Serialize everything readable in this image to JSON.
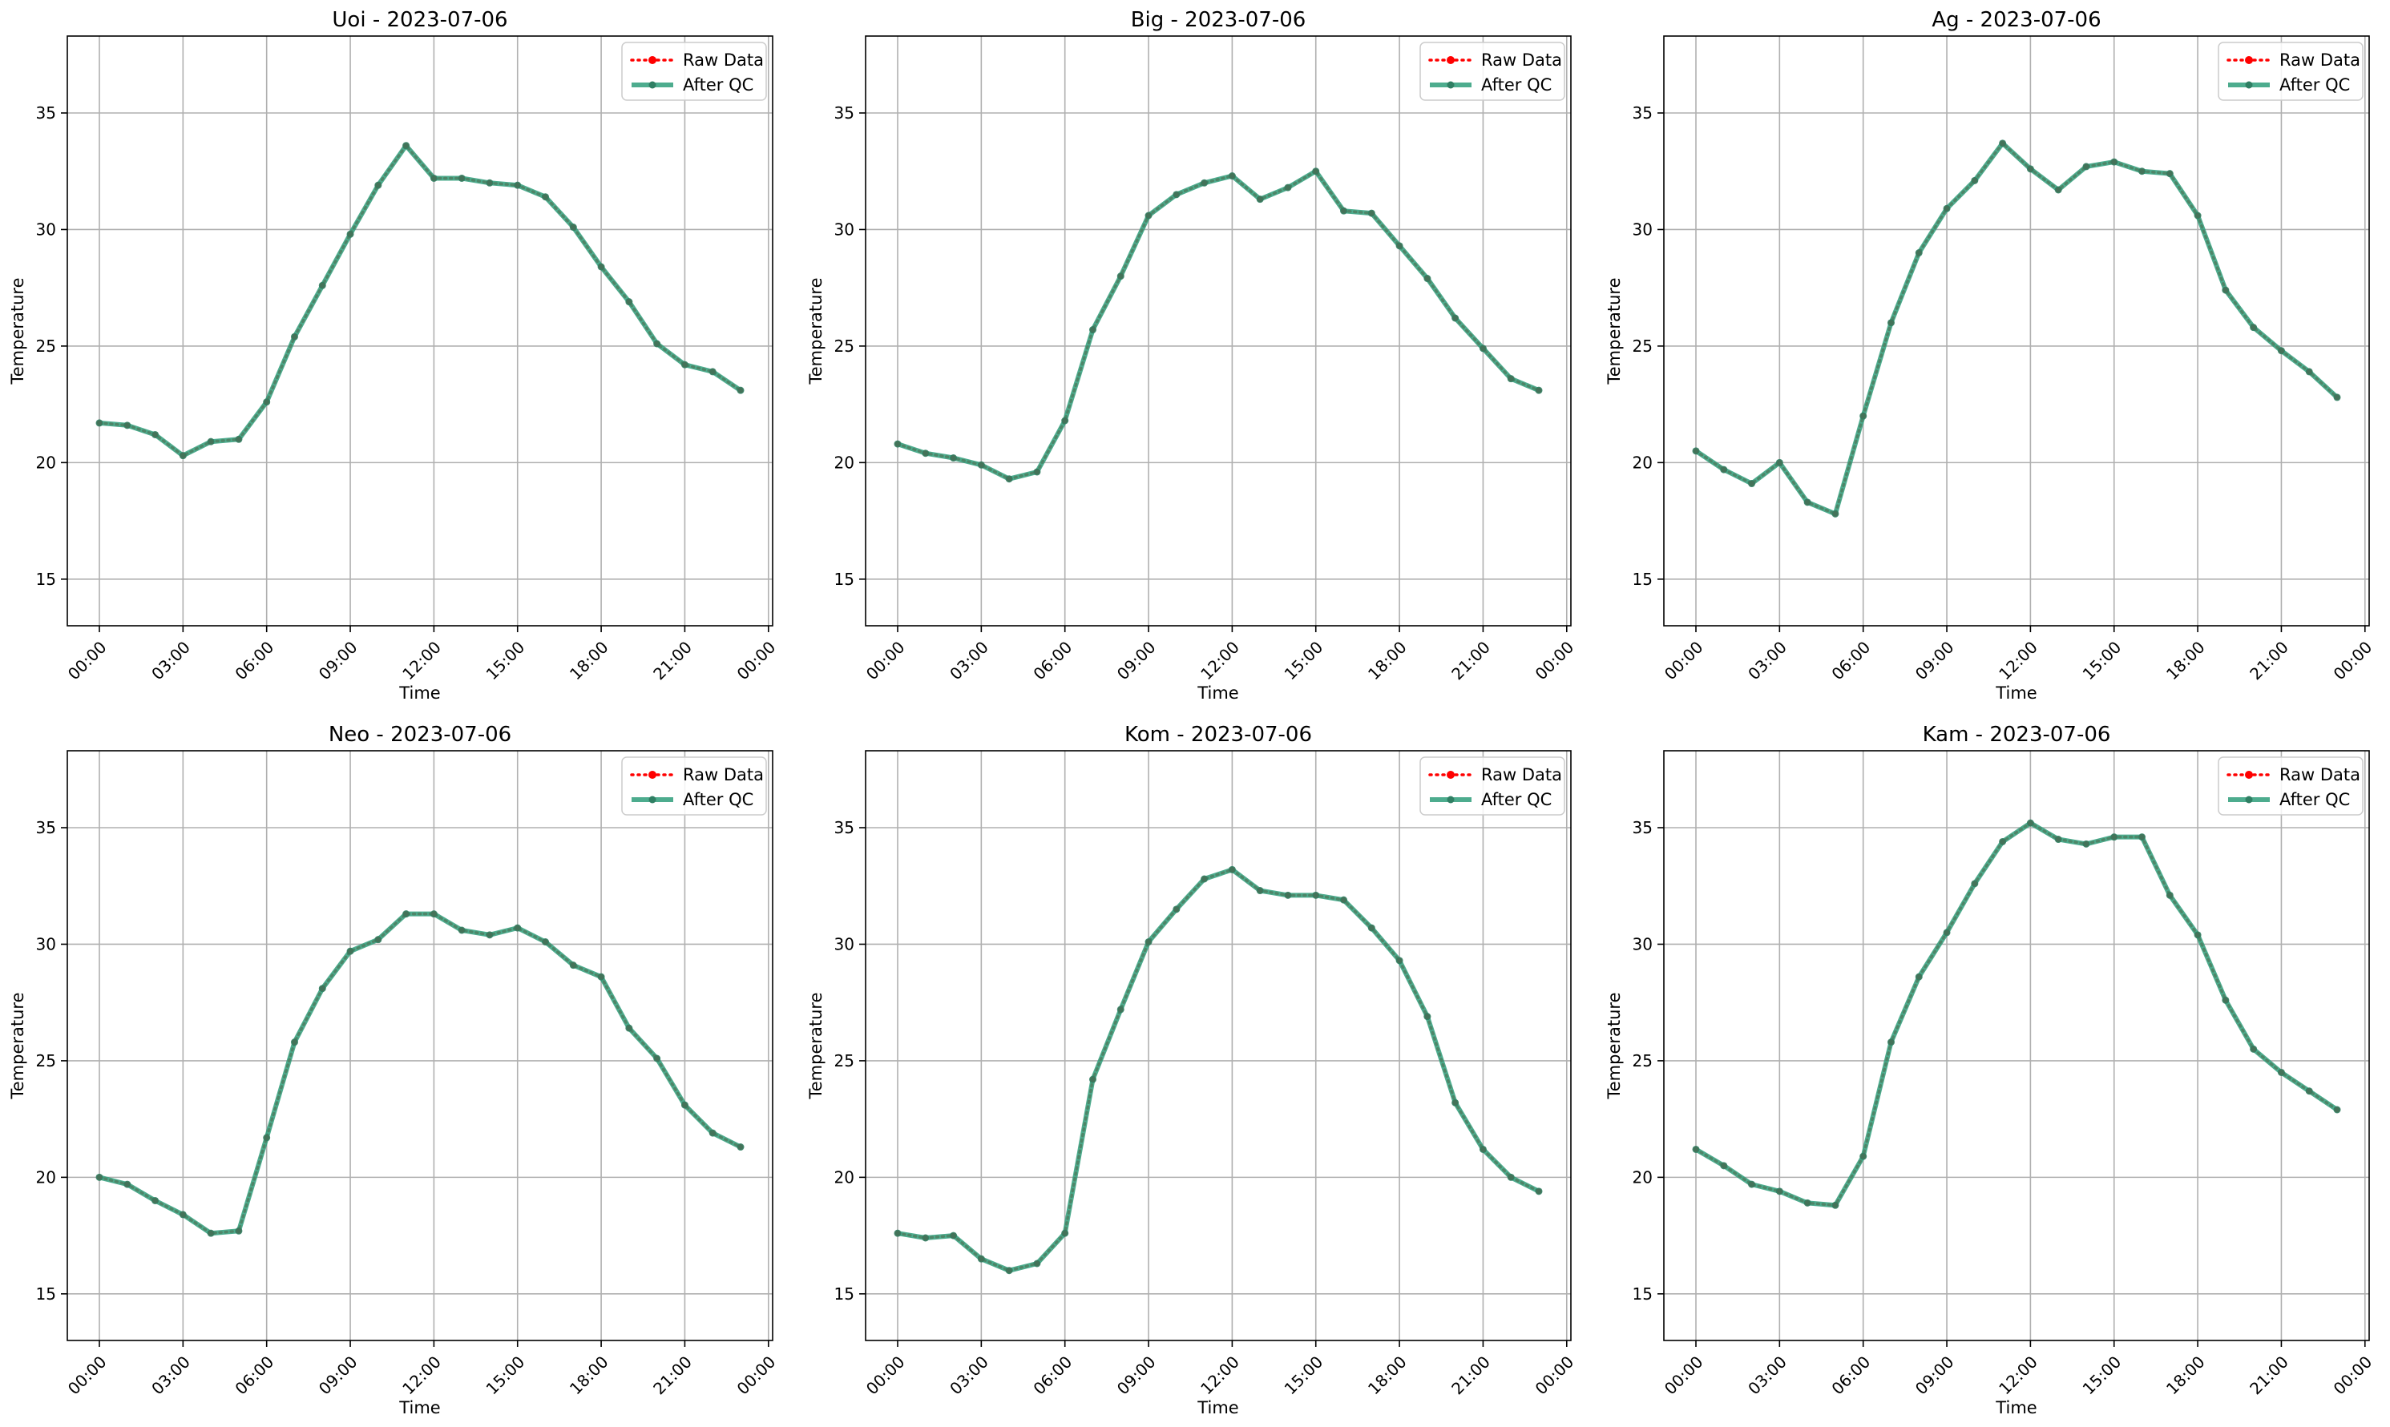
{
  "figure": {
    "colors": {
      "raw": "#ff0000",
      "qc": "#2e9e7a",
      "grid": "#b0b0b0",
      "axis": "#000000"
    }
  },
  "chart_data": [
    {
      "type": "line",
      "title": "Uoi - 2023-07-06",
      "xlabel": "Time",
      "ylabel": "Temperature",
      "x": [
        "00:00",
        "01:00",
        "02:00",
        "03:00",
        "04:00",
        "05:00",
        "06:00",
        "07:00",
        "08:00",
        "09:00",
        "10:00",
        "11:00",
        "12:00",
        "13:00",
        "14:00",
        "15:00",
        "16:00",
        "17:00",
        "18:00",
        "19:00",
        "20:00",
        "21:00",
        "22:00",
        "23:00"
      ],
      "xticks": [
        "00:00",
        "03:00",
        "06:00",
        "09:00",
        "12:00",
        "15:00",
        "18:00",
        "21:00",
        "00:00"
      ],
      "yticks": [
        15,
        20,
        25,
        30,
        35
      ],
      "ylim": [
        13,
        38.3
      ],
      "grid": true,
      "legend": "upper right",
      "series": [
        {
          "name": "Raw Data",
          "style": "dotted",
          "color": "#ff0000",
          "values": [
            21.7,
            21.6,
            21.2,
            20.3,
            20.9,
            21.0,
            22.6,
            25.4,
            27.6,
            29.8,
            31.9,
            33.6,
            32.2,
            32.2,
            32.0,
            31.9,
            31.4,
            30.1,
            28.4,
            26.9,
            25.1,
            24.2,
            23.9,
            23.1
          ]
        },
        {
          "name": "After QC",
          "style": "solid",
          "color": "#2e9e7a",
          "values": [
            21.7,
            21.6,
            21.2,
            20.3,
            20.9,
            21.0,
            22.6,
            25.4,
            27.6,
            29.8,
            31.9,
            33.6,
            32.2,
            32.2,
            32.0,
            31.9,
            31.4,
            30.1,
            28.4,
            26.9,
            25.1,
            24.2,
            23.9,
            23.1
          ]
        }
      ]
    },
    {
      "type": "line",
      "title": "Big - 2023-07-06",
      "xlabel": "Time",
      "ylabel": "Temperature",
      "x": [
        "00:00",
        "01:00",
        "02:00",
        "03:00",
        "04:00",
        "05:00",
        "06:00",
        "07:00",
        "08:00",
        "09:00",
        "10:00",
        "11:00",
        "12:00",
        "13:00",
        "14:00",
        "15:00",
        "16:00",
        "17:00",
        "18:00",
        "19:00",
        "20:00",
        "21:00",
        "22:00",
        "23:00"
      ],
      "xticks": [
        "00:00",
        "03:00",
        "06:00",
        "09:00",
        "12:00",
        "15:00",
        "18:00",
        "21:00",
        "00:00"
      ],
      "yticks": [
        15,
        20,
        25,
        30,
        35
      ],
      "ylim": [
        13,
        38.3
      ],
      "grid": true,
      "legend": "upper right",
      "series": [
        {
          "name": "Raw Data",
          "style": "dotted",
          "color": "#ff0000",
          "values": [
            20.8,
            20.4,
            20.2,
            19.9,
            19.3,
            19.6,
            21.8,
            25.7,
            28.0,
            30.6,
            31.5,
            32.0,
            32.3,
            31.3,
            31.8,
            32.5,
            30.8,
            30.7,
            29.3,
            27.9,
            26.2,
            24.9,
            23.6,
            23.1
          ]
        },
        {
          "name": "After QC",
          "style": "solid",
          "color": "#2e9e7a",
          "values": [
            20.8,
            20.4,
            20.2,
            19.9,
            19.3,
            19.6,
            21.8,
            25.7,
            28.0,
            30.6,
            31.5,
            32.0,
            32.3,
            31.3,
            31.8,
            32.5,
            30.8,
            30.7,
            29.3,
            27.9,
            26.2,
            24.9,
            23.6,
            23.1
          ]
        }
      ]
    },
    {
      "type": "line",
      "title": "Ag - 2023-07-06",
      "xlabel": "Time",
      "ylabel": "Temperature",
      "x": [
        "00:00",
        "01:00",
        "02:00",
        "03:00",
        "04:00",
        "05:00",
        "06:00",
        "07:00",
        "08:00",
        "09:00",
        "10:00",
        "11:00",
        "12:00",
        "13:00",
        "14:00",
        "15:00",
        "16:00",
        "17:00",
        "18:00",
        "19:00",
        "20:00",
        "21:00",
        "22:00",
        "23:00"
      ],
      "xticks": [
        "00:00",
        "03:00",
        "06:00",
        "09:00",
        "12:00",
        "15:00",
        "18:00",
        "21:00",
        "00:00"
      ],
      "yticks": [
        15,
        20,
        25,
        30,
        35
      ],
      "ylim": [
        13,
        38.3
      ],
      "grid": true,
      "legend": "upper right",
      "series": [
        {
          "name": "Raw Data",
          "style": "dotted",
          "color": "#ff0000",
          "values": [
            20.5,
            19.7,
            19.1,
            20.0,
            18.3,
            17.8,
            22.0,
            26.0,
            29.0,
            30.9,
            32.1,
            33.7,
            32.6,
            31.7,
            32.7,
            32.9,
            32.5,
            32.4,
            30.6,
            27.4,
            25.8,
            24.8,
            23.9,
            22.8
          ]
        },
        {
          "name": "After QC",
          "style": "solid",
          "color": "#2e9e7a",
          "values": [
            20.5,
            19.7,
            19.1,
            20.0,
            18.3,
            17.8,
            22.0,
            26.0,
            29.0,
            30.9,
            32.1,
            33.7,
            32.6,
            31.7,
            32.7,
            32.9,
            32.5,
            32.4,
            30.6,
            27.4,
            25.8,
            24.8,
            23.9,
            22.8
          ]
        }
      ]
    },
    {
      "type": "line",
      "title": "Neo - 2023-07-06",
      "xlabel": "Time",
      "ylabel": "Temperature",
      "x": [
        "00:00",
        "01:00",
        "02:00",
        "03:00",
        "04:00",
        "05:00",
        "06:00",
        "07:00",
        "08:00",
        "09:00",
        "10:00",
        "11:00",
        "12:00",
        "13:00",
        "14:00",
        "15:00",
        "16:00",
        "17:00",
        "18:00",
        "19:00",
        "20:00",
        "21:00",
        "22:00",
        "23:00"
      ],
      "xticks": [
        "00:00",
        "03:00",
        "06:00",
        "09:00",
        "12:00",
        "15:00",
        "18:00",
        "21:00",
        "00:00"
      ],
      "yticks": [
        15,
        20,
        25,
        30,
        35
      ],
      "ylim": [
        13,
        38.3
      ],
      "grid": true,
      "legend": "upper right",
      "series": [
        {
          "name": "Raw Data",
          "style": "dotted",
          "color": "#ff0000",
          "values": [
            20.0,
            19.7,
            19.0,
            18.4,
            17.6,
            17.7,
            21.7,
            25.8,
            28.1,
            29.7,
            30.2,
            31.3,
            31.3,
            30.6,
            30.4,
            30.7,
            30.1,
            29.1,
            28.6,
            26.4,
            25.1,
            23.1,
            21.9,
            21.3
          ]
        },
        {
          "name": "After QC",
          "style": "solid",
          "color": "#2e9e7a",
          "values": [
            20.0,
            19.7,
            19.0,
            18.4,
            17.6,
            17.7,
            21.7,
            25.8,
            28.1,
            29.7,
            30.2,
            31.3,
            31.3,
            30.6,
            30.4,
            30.7,
            30.1,
            29.1,
            28.6,
            26.4,
            25.1,
            23.1,
            21.9,
            21.3
          ]
        }
      ]
    },
    {
      "type": "line",
      "title": "Kom - 2023-07-06",
      "xlabel": "Time",
      "ylabel": "Temperature",
      "x": [
        "00:00",
        "01:00",
        "02:00",
        "03:00",
        "04:00",
        "05:00",
        "06:00",
        "07:00",
        "08:00",
        "09:00",
        "10:00",
        "11:00",
        "12:00",
        "13:00",
        "14:00",
        "15:00",
        "16:00",
        "17:00",
        "18:00",
        "19:00",
        "20:00",
        "21:00",
        "22:00",
        "23:00"
      ],
      "xticks": [
        "00:00",
        "03:00",
        "06:00",
        "09:00",
        "12:00",
        "15:00",
        "18:00",
        "21:00",
        "00:00"
      ],
      "yticks": [
        15,
        20,
        25,
        30,
        35
      ],
      "ylim": [
        13,
        38.3
      ],
      "grid": true,
      "legend": "upper right",
      "series": [
        {
          "name": "Raw Data",
          "style": "dotted",
          "color": "#ff0000",
          "values": [
            17.6,
            17.4,
            17.5,
            16.5,
            16.0,
            16.3,
            17.6,
            24.2,
            27.2,
            30.1,
            31.5,
            32.8,
            33.2,
            32.3,
            32.1,
            32.1,
            31.9,
            30.7,
            29.3,
            26.9,
            23.2,
            21.2,
            20.0,
            19.4
          ]
        },
        {
          "name": "After QC",
          "style": "solid",
          "color": "#2e9e7a",
          "values": [
            17.6,
            17.4,
            17.5,
            16.5,
            16.0,
            16.3,
            17.6,
            24.2,
            27.2,
            30.1,
            31.5,
            32.8,
            33.2,
            32.3,
            32.1,
            32.1,
            31.9,
            30.7,
            29.3,
            26.9,
            23.2,
            21.2,
            20.0,
            19.4
          ]
        }
      ]
    },
    {
      "type": "line",
      "title": "Kam - 2023-07-06",
      "xlabel": "Time",
      "ylabel": "Temperature",
      "x": [
        "00:00",
        "01:00",
        "02:00",
        "03:00",
        "04:00",
        "05:00",
        "06:00",
        "07:00",
        "08:00",
        "09:00",
        "10:00",
        "11:00",
        "12:00",
        "13:00",
        "14:00",
        "15:00",
        "16:00",
        "17:00",
        "18:00",
        "19:00",
        "20:00",
        "21:00",
        "22:00",
        "23:00"
      ],
      "xticks": [
        "00:00",
        "03:00",
        "06:00",
        "09:00",
        "12:00",
        "15:00",
        "18:00",
        "21:00",
        "00:00"
      ],
      "yticks": [
        15,
        20,
        25,
        30,
        35
      ],
      "ylim": [
        13,
        38.3
      ],
      "grid": true,
      "legend": "upper right",
      "series": [
        {
          "name": "Raw Data",
          "style": "dotted",
          "color": "#ff0000",
          "values": [
            21.2,
            20.5,
            19.7,
            19.4,
            18.9,
            18.8,
            20.9,
            25.8,
            28.6,
            30.5,
            32.6,
            34.4,
            35.2,
            34.5,
            34.3,
            34.6,
            34.6,
            32.1,
            30.4,
            27.6,
            25.5,
            24.5,
            23.7,
            22.9
          ]
        },
        {
          "name": "After QC",
          "style": "solid",
          "color": "#2e9e7a",
          "values": [
            21.2,
            20.5,
            19.7,
            19.4,
            18.9,
            18.8,
            20.9,
            25.8,
            28.6,
            30.5,
            32.6,
            34.4,
            35.2,
            34.5,
            34.3,
            34.6,
            34.6,
            32.1,
            30.4,
            27.6,
            25.5,
            24.5,
            23.7,
            22.9
          ]
        }
      ]
    }
  ]
}
